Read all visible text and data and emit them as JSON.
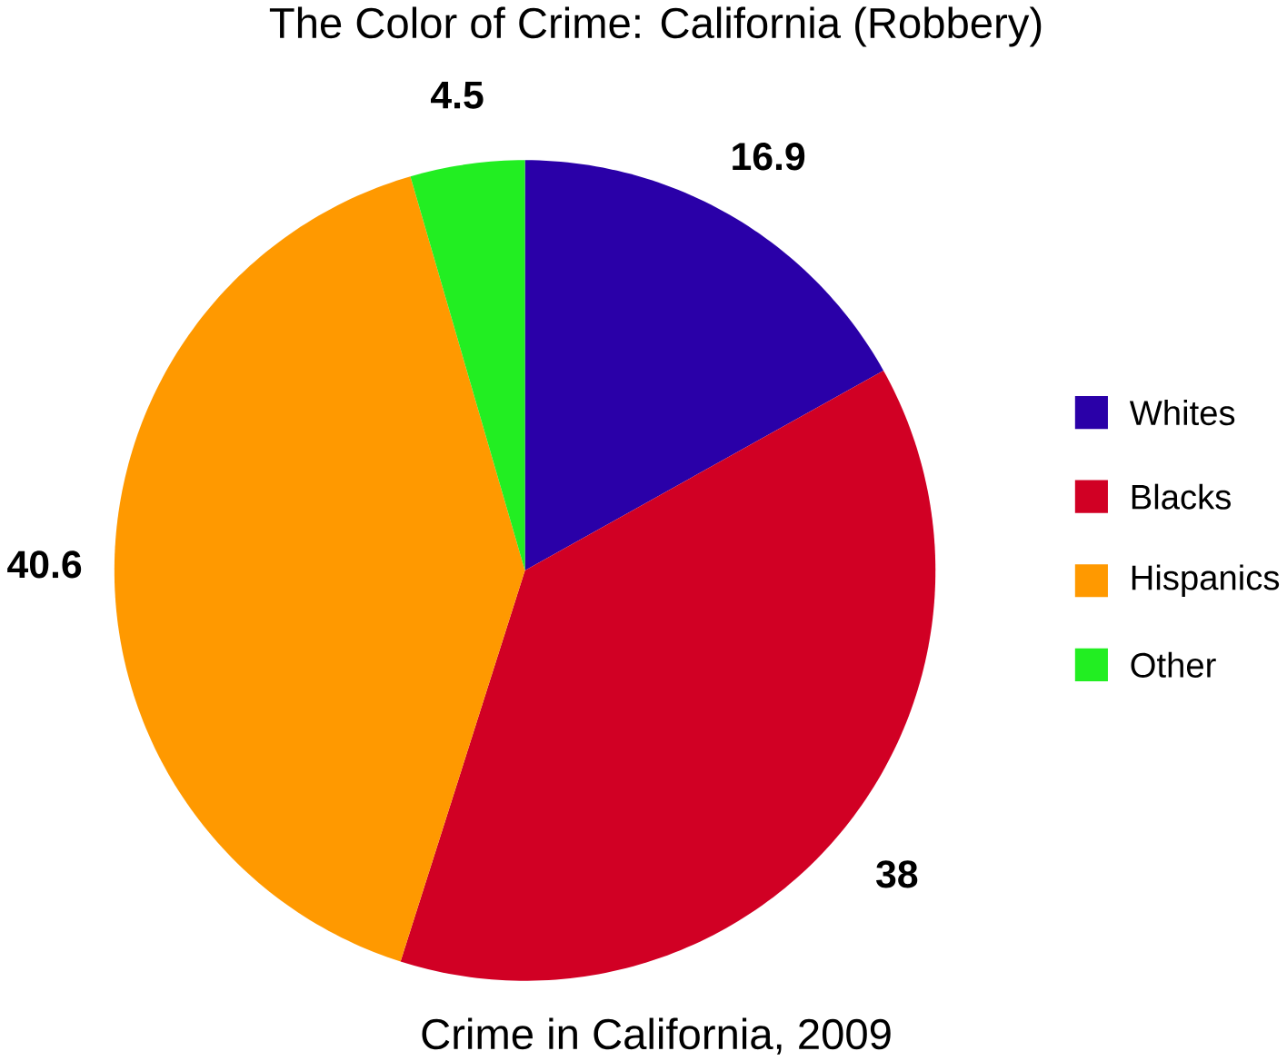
{
  "chart_data": {
    "type": "pie",
    "title": "The Color of Crime: California (Robbery)",
    "categories": [
      "Whites",
      "Blacks",
      "Hispanics",
      "Other"
    ],
    "values": [
      16.9,
      38,
      40.6,
      4.5
    ],
    "colors": [
      "#2a00a8",
      "#d10024",
      "#ff9900",
      "#22ee22"
    ],
    "data_labels": true,
    "legend": "right",
    "annotations": [
      "Crime in California, 2009"
    ]
  }
}
